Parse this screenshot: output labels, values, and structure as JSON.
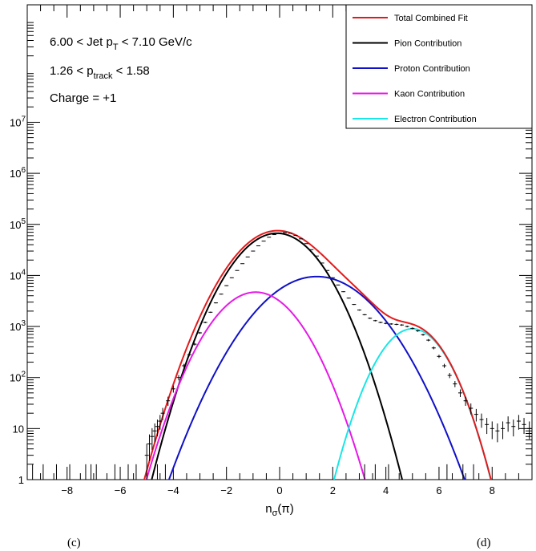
{
  "chart_data": {
    "type": "line",
    "title": "",
    "xlabel_base": "n",
    "xlabel_sub": "σ",
    "xlabel_arg": "(π)",
    "xlim": [
      -9.5,
      9.5
    ],
    "ylim": [
      1,
      2000000000
    ],
    "yscale": "log",
    "x_ticks": [
      -8,
      -6,
      -4,
      -2,
      0,
      2,
      4,
      6,
      8
    ],
    "x_tick_labels": [
      "−8",
      "−6",
      "−4",
      "−2",
      "0",
      "2",
      "4",
      "6",
      "8"
    ],
    "y_ticks": [
      {
        "value": 1,
        "base": "1",
        "exp": ""
      },
      {
        "value": 10,
        "base": "10",
        "exp": ""
      },
      {
        "value": 100,
        "base": "10",
        "exp": "2"
      },
      {
        "value": 1000,
        "base": "10",
        "exp": "3"
      },
      {
        "value": 10000,
        "base": "10",
        "exp": "4"
      },
      {
        "value": 100000,
        "base": "10",
        "exp": "5"
      },
      {
        "value": 1000000,
        "base": "10",
        "exp": "6"
      },
      {
        "value": 10000000,
        "base": "10",
        "exp": "7"
      }
    ],
    "annotations": {
      "jet_pt": {
        "pre": "6.00 < Jet p",
        "sub": "T",
        "post": " < 7.10 GeV/c"
      },
      "p_track": {
        "pre": "1.26 < p",
        "sub": "track",
        "post": " < 1.58"
      },
      "charge": "Charge = +1"
    },
    "legend": {
      "position": "top-right",
      "entries": [
        {
          "label": "Total Combined Fit",
          "color": "#e31a1c"
        },
        {
          "label": "Pion Contribution",
          "color": "#000000"
        },
        {
          "label": "Proton Contribution",
          "color": "#1010c8"
        },
        {
          "label": "Kaon Contribution",
          "color": "#e619e6"
        },
        {
          "label": "Electron Contribution",
          "color": "#19e6e6"
        }
      ]
    },
    "series": [
      {
        "name": "Pion Contribution",
        "color": "#000000",
        "shape": "gaussian",
        "amplitude": 67000,
        "mean": -0.1,
        "sigma": 1.0
      },
      {
        "name": "Proton Contribution",
        "color": "#1010c8",
        "shape": "gaussian",
        "amplitude": 9500,
        "mean": 1.4,
        "sigma": 1.3
      },
      {
        "name": "Kaon Contribution",
        "color": "#e619e6",
        "shape": "gaussian",
        "amplitude": 4700,
        "mean": -0.9,
        "sigma": 1.0
      },
      {
        "name": "Electron Contribution",
        "color": "#19e6e6",
        "shape": "gaussian",
        "amplitude": 900,
        "mean": 5.0,
        "sigma": 0.8
      },
      {
        "name": "Total Combined Fit",
        "color": "#e31a1c",
        "shape": "sum"
      }
    ],
    "data_points": {
      "color": "#000000",
      "points": [
        [
          -5.0,
          3
        ],
        [
          -4.9,
          5
        ],
        [
          -4.8,
          7
        ],
        [
          -4.7,
          9
        ],
        [
          -4.6,
          11
        ],
        [
          -4.5,
          14
        ],
        [
          -4.4,
          20
        ],
        [
          -4.2,
          35
        ],
        [
          -4.0,
          60
        ],
        [
          -3.8,
          100
        ],
        [
          -3.6,
          170
        ],
        [
          -3.4,
          280
        ],
        [
          -3.2,
          450
        ],
        [
          -3.0,
          750
        ],
        [
          -2.8,
          1200
        ],
        [
          -2.6,
          1900
        ],
        [
          -2.4,
          2900
        ],
        [
          -2.2,
          4300
        ],
        [
          -2.0,
          6300
        ],
        [
          -1.8,
          9000
        ],
        [
          -1.6,
          12500
        ],
        [
          -1.4,
          17000
        ],
        [
          -1.2,
          23000
        ],
        [
          -1.0,
          30000
        ],
        [
          -0.8,
          38000
        ],
        [
          -0.6,
          47000
        ],
        [
          -0.4,
          56000
        ],
        [
          -0.2,
          63000
        ],
        [
          0.0,
          68000
        ],
        [
          0.2,
          69000
        ],
        [
          0.4,
          67000
        ],
        [
          0.6,
          61000
        ],
        [
          0.8,
          52000
        ],
        [
          1.0,
          42000
        ],
        [
          1.2,
          32000
        ],
        [
          1.4,
          24000
        ],
        [
          1.6,
          17500
        ],
        [
          1.8,
          12500
        ],
        [
          2.0,
          9000
        ],
        [
          2.2,
          6500
        ],
        [
          2.4,
          4800
        ],
        [
          2.6,
          3600
        ],
        [
          2.8,
          2700
        ],
        [
          3.0,
          2100
        ],
        [
          3.2,
          1700
        ],
        [
          3.4,
          1450
        ],
        [
          3.6,
          1300
        ],
        [
          3.8,
          1200
        ],
        [
          4.0,
          1150
        ],
        [
          4.2,
          1120
        ],
        [
          4.4,
          1100
        ],
        [
          4.6,
          1070
        ],
        [
          4.8,
          1000
        ],
        [
          5.0,
          920
        ],
        [
          5.2,
          820
        ],
        [
          5.4,
          690
        ],
        [
          5.6,
          540
        ],
        [
          5.8,
          380
        ],
        [
          6.0,
          260
        ],
        [
          6.2,
          170
        ],
        [
          6.4,
          110
        ],
        [
          6.6,
          75
        ],
        [
          6.8,
          50
        ],
        [
          7.0,
          35
        ],
        [
          7.2,
          25
        ],
        [
          7.4,
          19
        ],
        [
          7.6,
          15
        ],
        [
          7.8,
          12
        ],
        [
          8.0,
          10
        ],
        [
          8.2,
          9
        ],
        [
          8.4,
          10
        ],
        [
          8.6,
          13
        ],
        [
          8.8,
          11
        ],
        [
          9.0,
          14
        ],
        [
          9.2,
          12
        ],
        [
          9.4,
          10
        ]
      ],
      "low_spikes": [
        -9.3,
        -8.9,
        -8.4,
        -7.9,
        -7.3,
        -7.1,
        -6.9,
        -6.2,
        -5.7,
        -5.4,
        -4.6,
        -4.3,
        3.2,
        3.6,
        4.1,
        6.3,
        6.9,
        7.3
      ]
    }
  },
  "bottom_label_left": "(c)",
  "bottom_label_right": "(d)"
}
